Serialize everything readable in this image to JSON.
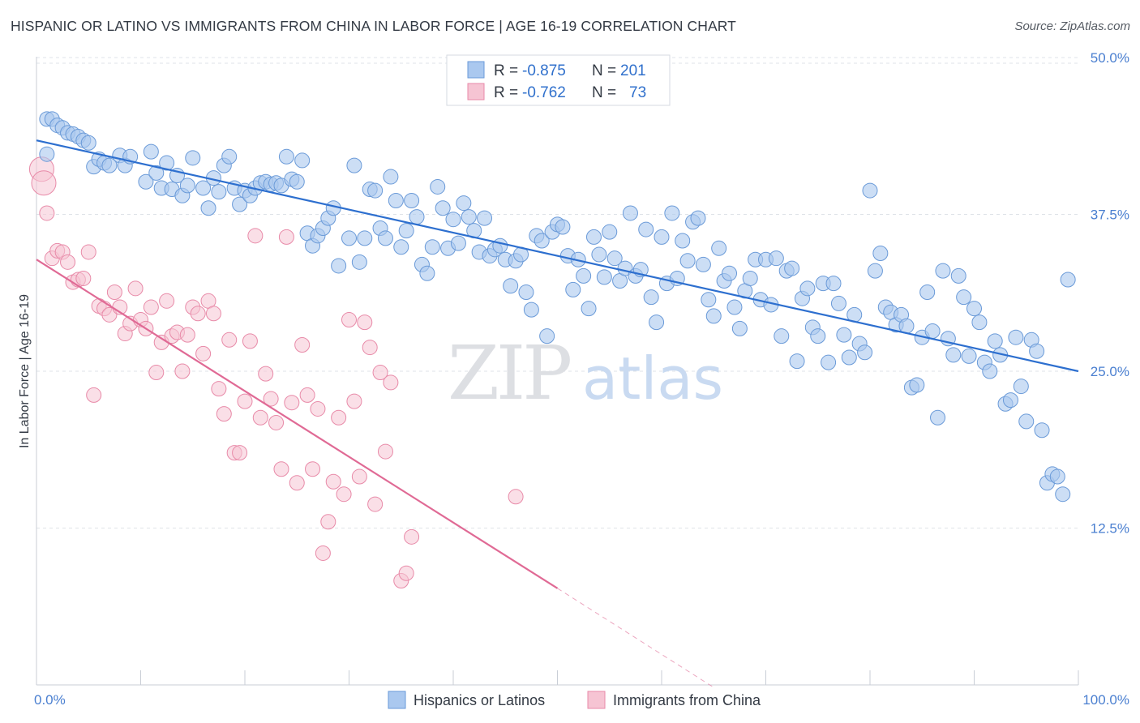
{
  "header": {
    "title": "HISPANIC OR LATINO VS IMMIGRANTS FROM CHINA IN LABOR FORCE | AGE 16-19 CORRELATION CHART",
    "source": "Source: ZipAtlas.com"
  },
  "watermark": {
    "zip": "ZIP",
    "atlas": "atlas"
  },
  "legend_box": {
    "rows": [
      {
        "r_label": "R = ",
        "r_value": "-0.875",
        "n_label": "N = ",
        "n_value": "201"
      },
      {
        "r_label": "R = ",
        "r_value": "-0.762",
        "n_label": "N = ",
        "n_value": "73"
      }
    ]
  },
  "colors": {
    "blue_fill": "#aac8ef",
    "blue_stroke": "#6a9ad8",
    "blue_line": "#2d6fcf",
    "pink_fill": "#f6c4d3",
    "pink_stroke": "#e88aa8",
    "pink_line": "#e06a95",
    "grid": "#dfe3e8",
    "tick_text": "#4a7fd0"
  },
  "chart_data": {
    "type": "scatter",
    "title": "HISPANIC OR LATINO VS IMMIGRANTS FROM CHINA IN LABOR FORCE | AGE 16-19 CORRELATION CHART",
    "xlabel": "",
    "ylabel": "In Labor Force | Age 16-19",
    "xlim": [
      0,
      100
    ],
    "ylim": [
      0,
      52
    ],
    "x_tick_labels": [
      "0.0%",
      "100.0%"
    ],
    "y_ticks": [
      12.5,
      25.0,
      37.5,
      50.0
    ],
    "y_tick_labels": [
      "12.5%",
      "25.0%",
      "37.5%",
      "50.0%"
    ],
    "grid": true,
    "legend_position": "top-center",
    "series": [
      {
        "name": "Hispanics or Latinos",
        "r": -0.875,
        "n": 201,
        "trend": {
          "x": [
            0,
            100
          ],
          "y": [
            43.4,
            25.0
          ]
        },
        "points": [
          [
            1,
            45.1
          ],
          [
            1.5,
            45.1
          ],
          [
            2,
            44.6
          ],
          [
            2.5,
            44.4
          ],
          [
            3,
            44.0
          ],
          [
            3.5,
            43.9
          ],
          [
            4,
            43.7
          ],
          [
            4.5,
            43.4
          ],
          [
            5,
            43.2
          ],
          [
            1,
            42.3
          ],
          [
            5.5,
            41.3
          ],
          [
            6,
            41.9
          ],
          [
            6.5,
            41.6
          ],
          [
            7,
            41.4
          ],
          [
            8,
            42.2
          ],
          [
            8.5,
            41.4
          ],
          [
            9,
            42.1
          ],
          [
            10.5,
            40.1
          ],
          [
            11,
            42.5
          ],
          [
            11.5,
            40.8
          ],
          [
            12,
            39.6
          ],
          [
            12.5,
            41.6
          ],
          [
            13,
            39.5
          ],
          [
            13.5,
            40.6
          ],
          [
            14,
            39.0
          ],
          [
            14.5,
            39.8
          ],
          [
            15,
            42.0
          ],
          [
            16,
            39.6
          ],
          [
            16.5,
            38.0
          ],
          [
            17,
            40.4
          ],
          [
            17.5,
            39.3
          ],
          [
            18,
            41.4
          ],
          [
            18.5,
            42.1
          ],
          [
            19,
            39.6
          ],
          [
            19.5,
            38.3
          ],
          [
            20,
            39.4
          ],
          [
            20.5,
            39.0
          ],
          [
            21,
            39.6
          ],
          [
            21.5,
            40.0
          ],
          [
            22,
            40.1
          ],
          [
            22.5,
            39.9
          ],
          [
            23,
            40.0
          ],
          [
            23.5,
            39.8
          ],
          [
            24,
            42.1
          ],
          [
            24.5,
            40.3
          ],
          [
            25,
            40.1
          ],
          [
            25.5,
            41.8
          ],
          [
            26,
            36.0
          ],
          [
            26.5,
            35.0
          ],
          [
            27,
            35.8
          ],
          [
            27.5,
            36.4
          ],
          [
            28,
            37.2
          ],
          [
            28.5,
            38.0
          ],
          [
            29,
            33.4
          ],
          [
            30,
            35.6
          ],
          [
            30.5,
            41.4
          ],
          [
            31,
            33.7
          ],
          [
            31.5,
            35.6
          ],
          [
            32,
            39.5
          ],
          [
            32.5,
            39.4
          ],
          [
            33,
            36.4
          ],
          [
            33.5,
            35.6
          ],
          [
            34,
            40.5
          ],
          [
            34.5,
            38.6
          ],
          [
            35,
            34.9
          ],
          [
            35.5,
            36.2
          ],
          [
            36,
            38.6
          ],
          [
            36.5,
            37.3
          ],
          [
            37,
            33.5
          ],
          [
            37.5,
            32.8
          ],
          [
            38,
            34.9
          ],
          [
            38.5,
            39.7
          ],
          [
            39,
            38.0
          ],
          [
            39.5,
            34.8
          ],
          [
            40,
            37.1
          ],
          [
            40.5,
            35.2
          ],
          [
            41,
            38.4
          ],
          [
            41.5,
            37.3
          ],
          [
            42,
            36.2
          ],
          [
            42.5,
            34.5
          ],
          [
            43,
            37.2
          ],
          [
            43.5,
            34.2
          ],
          [
            44,
            34.7
          ],
          [
            44.5,
            35.0
          ],
          [
            45,
            33.9
          ],
          [
            45.5,
            31.8
          ],
          [
            46,
            33.8
          ],
          [
            46.5,
            34.3
          ],
          [
            47,
            31.3
          ],
          [
            47.5,
            29.9
          ],
          [
            48,
            35.8
          ],
          [
            48.5,
            35.4
          ],
          [
            49,
            27.8
          ],
          [
            49.5,
            36.1
          ],
          [
            50,
            36.7
          ],
          [
            50.5,
            36.5
          ],
          [
            51,
            34.2
          ],
          [
            51.5,
            31.5
          ],
          [
            52,
            33.9
          ],
          [
            52.5,
            32.6
          ],
          [
            53,
            30.0
          ],
          [
            53.5,
            35.7
          ],
          [
            54,
            34.3
          ],
          [
            54.5,
            32.5
          ],
          [
            55,
            36.1
          ],
          [
            55.5,
            34.0
          ],
          [
            56,
            32.2
          ],
          [
            56.5,
            33.2
          ],
          [
            57,
            37.6
          ],
          [
            57.5,
            32.6
          ],
          [
            58,
            33.1
          ],
          [
            58.5,
            36.3
          ],
          [
            59,
            30.9
          ],
          [
            59.5,
            28.9
          ],
          [
            60,
            35.7
          ],
          [
            60.5,
            32.0
          ],
          [
            61,
            37.6
          ],
          [
            61.5,
            32.4
          ],
          [
            62,
            35.4
          ],
          [
            62.5,
            33.8
          ],
          [
            63,
            36.9
          ],
          [
            63.5,
            37.2
          ],
          [
            64,
            33.5
          ],
          [
            64.5,
            30.7
          ],
          [
            65,
            29.4
          ],
          [
            65.5,
            34.8
          ],
          [
            66,
            32.2
          ],
          [
            66.5,
            32.8
          ],
          [
            67,
            30.1
          ],
          [
            67.5,
            28.4
          ],
          [
            68,
            31.4
          ],
          [
            68.5,
            32.4
          ],
          [
            69,
            33.9
          ],
          [
            69.5,
            30.7
          ],
          [
            70,
            33.9
          ],
          [
            70.5,
            30.3
          ],
          [
            71,
            34.0
          ],
          [
            71.5,
            27.8
          ],
          [
            72,
            33.0
          ],
          [
            72.5,
            33.2
          ],
          [
            73,
            25.8
          ],
          [
            73.5,
            30.8
          ],
          [
            74,
            31.6
          ],
          [
            74.5,
            28.5
          ],
          [
            75,
            27.8
          ],
          [
            75.5,
            32.0
          ],
          [
            76,
            25.7
          ],
          [
            76.5,
            32.0
          ],
          [
            77,
            30.4
          ],
          [
            77.5,
            27.9
          ],
          [
            78,
            26.1
          ],
          [
            78.5,
            29.5
          ],
          [
            79,
            27.2
          ],
          [
            79.5,
            26.5
          ],
          [
            80,
            39.4
          ],
          [
            80.5,
            33.0
          ],
          [
            81,
            34.4
          ],
          [
            81.5,
            30.1
          ],
          [
            82,
            29.7
          ],
          [
            82.5,
            28.7
          ],
          [
            83,
            29.5
          ],
          [
            83.5,
            28.6
          ],
          [
            84,
            23.7
          ],
          [
            84.5,
            23.9
          ],
          [
            85,
            27.7
          ],
          [
            85.5,
            31.3
          ],
          [
            86,
            28.2
          ],
          [
            86.5,
            21.3
          ],
          [
            87,
            33.0
          ],
          [
            87.5,
            27.6
          ],
          [
            88,
            26.3
          ],
          [
            88.5,
            32.6
          ],
          [
            89,
            30.9
          ],
          [
            89.5,
            26.2
          ],
          [
            90,
            30.0
          ],
          [
            90.5,
            28.9
          ],
          [
            91,
            25.7
          ],
          [
            91.5,
            25.0
          ],
          [
            92,
            27.4
          ],
          [
            92.5,
            26.3
          ],
          [
            93,
            22.4
          ],
          [
            93.5,
            22.7
          ],
          [
            94,
            27.7
          ],
          [
            94.5,
            23.8
          ],
          [
            95,
            21.0
          ],
          [
            95.5,
            27.5
          ],
          [
            96,
            26.6
          ],
          [
            96.5,
            20.3
          ],
          [
            97,
            16.1
          ],
          [
            97.5,
            16.8
          ],
          [
            98,
            16.6
          ],
          [
            98.5,
            15.2
          ],
          [
            99,
            32.3
          ]
        ]
      },
      {
        "name": "Immigrants from China",
        "r": -0.762,
        "n": 73,
        "trend": {
          "x": [
            0,
            50
          ],
          "y": [
            33.9,
            7.7
          ]
        },
        "trend_dashed": {
          "x": [
            50,
            65
          ],
          "y": [
            7.7,
            -0.2
          ]
        },
        "points": [
          [
            0.5,
            41.1
          ],
          [
            0.7,
            40.0
          ],
          [
            1,
            37.6
          ],
          [
            1.5,
            34.0
          ],
          [
            2,
            34.6
          ],
          [
            2.5,
            34.5
          ],
          [
            3,
            33.7
          ],
          [
            3.5,
            32.1
          ],
          [
            4,
            32.3
          ],
          [
            4.5,
            32.4
          ],
          [
            5,
            34.5
          ],
          [
            5.5,
            23.1
          ],
          [
            6,
            30.2
          ],
          [
            6.5,
            30.0
          ],
          [
            7,
            29.5
          ],
          [
            7.5,
            31.3
          ],
          [
            8,
            30.1
          ],
          [
            8.5,
            28.0
          ],
          [
            9,
            28.8
          ],
          [
            9.5,
            31.6
          ],
          [
            10,
            29.1
          ],
          [
            10.5,
            28.4
          ],
          [
            11,
            30.1
          ],
          [
            11.5,
            24.9
          ],
          [
            12,
            27.3
          ],
          [
            12.5,
            30.6
          ],
          [
            13,
            27.8
          ],
          [
            13.5,
            28.1
          ],
          [
            14,
            25.0
          ],
          [
            14.5,
            27.9
          ],
          [
            15,
            30.1
          ],
          [
            15.5,
            29.6
          ],
          [
            16,
            26.4
          ],
          [
            16.5,
            30.6
          ],
          [
            17,
            29.6
          ],
          [
            17.5,
            23.6
          ],
          [
            18,
            21.6
          ],
          [
            18.5,
            27.5
          ],
          [
            19,
            18.5
          ],
          [
            19.5,
            18.5
          ],
          [
            20,
            22.6
          ],
          [
            20.5,
            27.4
          ],
          [
            21,
            35.8
          ],
          [
            21.5,
            21.3
          ],
          [
            22,
            24.8
          ],
          [
            22.5,
            22.8
          ],
          [
            23,
            20.9
          ],
          [
            23.5,
            17.2
          ],
          [
            24,
            35.7
          ],
          [
            24.5,
            22.5
          ],
          [
            25,
            16.1
          ],
          [
            25.5,
            27.1
          ],
          [
            26,
            23.1
          ],
          [
            26.5,
            17.2
          ],
          [
            27,
            22.0
          ],
          [
            27.5,
            10.5
          ],
          [
            28,
            13.0
          ],
          [
            28.5,
            16.2
          ],
          [
            29,
            21.3
          ],
          [
            29.5,
            15.2
          ],
          [
            30,
            29.1
          ],
          [
            30.5,
            22.6
          ],
          [
            31,
            16.6
          ],
          [
            31.5,
            28.9
          ],
          [
            32,
            26.9
          ],
          [
            32.5,
            14.4
          ],
          [
            33,
            24.9
          ],
          [
            33.5,
            18.6
          ],
          [
            34,
            24.1
          ],
          [
            35,
            8.3
          ],
          [
            35.5,
            8.9
          ],
          [
            36,
            11.8
          ],
          [
            46,
            15.0
          ]
        ]
      }
    ]
  },
  "bottom_legend": {
    "items": [
      {
        "label": "Hispanics or Latinos"
      },
      {
        "label": "Immigrants from China"
      }
    ]
  }
}
